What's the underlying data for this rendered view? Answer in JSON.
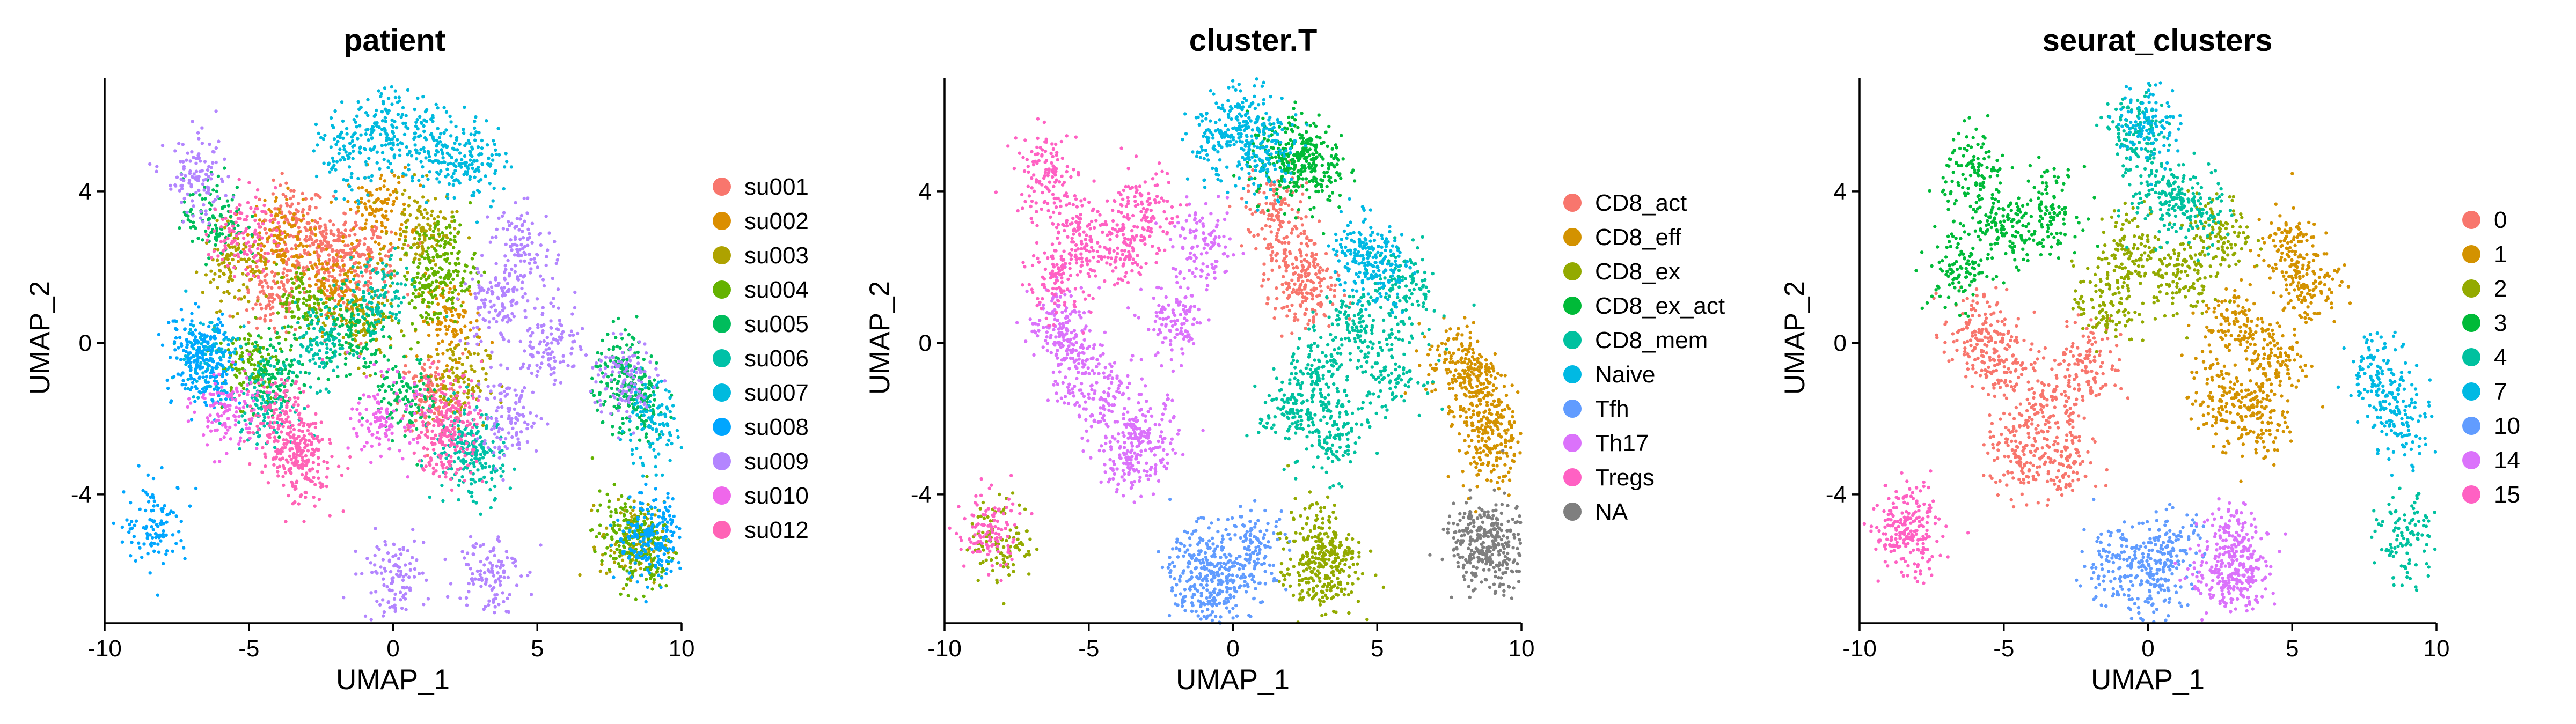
{
  "figure": {
    "panels": [
      {
        "title": "patient",
        "xlabel": "UMAP_1",
        "ylabel": "UMAP_2",
        "legend": [
          {
            "label": "su001",
            "color": "#F8766D"
          },
          {
            "label": "su002",
            "color": "#DB8E00"
          },
          {
            "label": "su003",
            "color": "#AEA200"
          },
          {
            "label": "su004",
            "color": "#64B200"
          },
          {
            "label": "su005",
            "color": "#00BD5C"
          },
          {
            "label": "su006",
            "color": "#00C1A7"
          },
          {
            "label": "su007",
            "color": "#00BADE"
          },
          {
            "label": "su008",
            "color": "#00A6FF"
          },
          {
            "label": "su009",
            "color": "#B385FF"
          },
          {
            "label": "su010",
            "color": "#EF67EB"
          },
          {
            "label": "su012",
            "color": "#FF63B6"
          }
        ]
      },
      {
        "title": "cluster.T",
        "xlabel": "UMAP_1",
        "ylabel": "UMAP_2",
        "legend": [
          {
            "label": "CD8_act",
            "color": "#F8766D"
          },
          {
            "label": "CD8_eff",
            "color": "#D39200"
          },
          {
            "label": "CD8_ex",
            "color": "#93AA00"
          },
          {
            "label": "CD8_ex_act",
            "color": "#00BA38"
          },
          {
            "label": "CD8_mem",
            "color": "#00C19F"
          },
          {
            "label": "Naive",
            "color": "#00B9E3"
          },
          {
            "label": "Tfh",
            "color": "#619CFF"
          },
          {
            "label": "Th17",
            "color": "#DB72FB"
          },
          {
            "label": "Tregs",
            "color": "#FF61C3"
          },
          {
            "label": "NA",
            "color": "#7F7F7F"
          }
        ]
      },
      {
        "title": "seurat_clusters",
        "xlabel": "UMAP_1",
        "ylabel": "UMAP_2",
        "legend": [
          {
            "label": "0",
            "color": "#F8766D"
          },
          {
            "label": "1",
            "color": "#D39200"
          },
          {
            "label": "2",
            "color": "#93AA00"
          },
          {
            "label": "3",
            "color": "#00BA38"
          },
          {
            "label": "4",
            "color": "#00C19F"
          },
          {
            "label": "7",
            "color": "#00B9E3"
          },
          {
            "label": "10",
            "color": "#619CFF"
          },
          {
            "label": "14",
            "color": "#DB72FB"
          },
          {
            "label": "15",
            "color": "#FF61C3"
          }
        ]
      }
    ]
  },
  "chart_data": [
    {
      "type": "scatter",
      "title": "patient",
      "xlabel": "UMAP_1",
      "ylabel": "UMAP_2",
      "xlim": [
        -10,
        10
      ],
      "ylim": [
        -7.4,
        7
      ],
      "xticks": [
        -10,
        -5,
        0,
        5,
        10
      ],
      "yticks": [
        -4,
        0,
        4
      ],
      "xtick_labels": [
        "-10",
        "-5",
        "0",
        "5",
        "10"
      ],
      "ytick_labels": [
        "-4",
        "0",
        "4"
      ],
      "grid": false,
      "legend_position": "right",
      "series": [
        {
          "name": "su001",
          "color": "#F8766D",
          "x": [
            -3.5,
            -2.5,
            -1.8,
            -4.2,
            -0.8,
            1.3
          ],
          "y": [
            3.1,
            2.6,
            1.9,
            1.2,
            2.2,
            -1.4
          ]
        },
        {
          "name": "su002",
          "color": "#DB8E00",
          "x": [
            -4.0,
            -2.2,
            -0.5,
            2.0
          ],
          "y": [
            2.8,
            1.5,
            3.5,
            0.6
          ]
        },
        {
          "name": "su003",
          "color": "#AEA200",
          "x": [
            -5.5,
            -1.0,
            1.0,
            2.2,
            8.3
          ],
          "y": [
            2.0,
            0.5,
            3.0,
            -1.0,
            -5.3
          ]
        },
        {
          "name": "su004",
          "color": "#64B200",
          "x": [
            -5.0,
            -3.0,
            1.2,
            1.8,
            8.0,
            8.6
          ],
          "y": [
            -0.5,
            1.0,
            1.5,
            2.2,
            -5.0,
            -5.5
          ]
        },
        {
          "name": "su005",
          "color": "#00BD5C",
          "x": [
            -6.2,
            -4.0,
            -1.5,
            0.5,
            8.0,
            8.4
          ],
          "y": [
            3.3,
            -0.8,
            0.2,
            -1.5,
            -0.8,
            -1.6
          ]
        },
        {
          "name": "su006",
          "color": "#00C1A7",
          "x": [
            -4.5,
            -2.5,
            -0.5,
            2.5,
            2.8
          ],
          "y": [
            -1.5,
            0.0,
            1.2,
            -2.6,
            -3.2
          ]
        },
        {
          "name": "su007",
          "color": "#00BADE",
          "x": [
            -1.5,
            0.0,
            1.5,
            2.8,
            -6.5,
            8.9
          ],
          "y": [
            5.0,
            5.7,
            5.2,
            4.8,
            -0.3,
            -2.2
          ]
        },
        {
          "name": "su008",
          "color": "#00A6FF",
          "x": [
            -6.8,
            -6.4,
            -8.2,
            9.2,
            8.8
          ],
          "y": [
            -0.2,
            -0.6,
            -4.8,
            -5.3,
            -5.1
          ]
        },
        {
          "name": "su009",
          "color": "#B385FF",
          "x": [
            -6.8,
            3.5,
            4.5,
            5.5,
            4.0,
            0.0,
            3.3,
            8.0
          ],
          "y": [
            4.3,
            1.0,
            2.5,
            0.0,
            -2.0,
            -6.2,
            -6.0,
            -1.0
          ]
        },
        {
          "name": "su010",
          "color": "#EF67EB",
          "x": [
            -0.3,
            -5.8
          ],
          "y": [
            -2.0,
            -1.8
          ]
        },
        {
          "name": "su012",
          "color": "#FF63B6",
          "x": [
            -3.5,
            -3.0,
            -4.0,
            -5.2,
            2.0,
            1.8
          ],
          "y": [
            -2.8,
            -3.2,
            -2.0,
            2.9,
            -1.8,
            -2.7
          ]
        }
      ]
    },
    {
      "type": "scatter",
      "title": "cluster.T",
      "xlabel": "UMAP_1",
      "ylabel": "UMAP_2",
      "xlim": [
        -10,
        10
      ],
      "ylim": [
        -7.4,
        7
      ],
      "xticks": [
        -10,
        -5,
        0,
        5,
        10
      ],
      "yticks": [
        -4,
        0,
        4
      ],
      "xtick_labels": [
        "-10",
        "-5",
        "0",
        "5",
        "10"
      ],
      "ytick_labels": [
        "-4",
        "0",
        "4"
      ],
      "grid": false,
      "legend_position": "right",
      "series": [
        {
          "name": "CD8_act",
          "color": "#F8766D",
          "x": [
            1.5,
            2.2,
            2.5
          ],
          "y": [
            3.5,
            2.0,
            1.2
          ]
        },
        {
          "name": "CD8_eff",
          "color": "#D39200",
          "x": [
            7.8,
            8.5,
            8.8,
            9.0
          ],
          "y": [
            -0.5,
            -1.0,
            -2.0,
            -2.8
          ]
        },
        {
          "name": "CD8_ex",
          "color": "#93AA00",
          "x": [
            3.0,
            3.4,
            2.7,
            -8.0
          ],
          "y": [
            -5.2,
            -5.9,
            -6.2,
            -5.2
          ]
        },
        {
          "name": "CD8_ex_act",
          "color": "#00BA38",
          "x": [
            2.4,
            2.8,
            1.6
          ],
          "y": [
            5.0,
            4.6,
            4.9
          ]
        },
        {
          "name": "CD8_mem",
          "color": "#00C19F",
          "x": [
            3.0,
            4.2,
            5.5,
            3.5,
            6.0,
            2.0
          ],
          "y": [
            -1.0,
            0.5,
            -0.8,
            -2.5,
            1.5,
            -1.8
          ]
        },
        {
          "name": "Naive",
          "color": "#00B9E3",
          "x": [
            -0.5,
            0.5,
            1.2,
            4.5,
            5.0
          ],
          "y": [
            5.3,
            5.8,
            5.0,
            2.5,
            2.0
          ]
        },
        {
          "name": "Tfh",
          "color": "#619CFF",
          "x": [
            -1.5,
            -0.2,
            0.8,
            -0.8
          ],
          "y": [
            -5.8,
            -6.2,
            -5.4,
            -6.6
          ]
        },
        {
          "name": "Th17",
          "color": "#DB72FB",
          "x": [
            -6.0,
            -4.5,
            -3.0,
            -2.0,
            -5.5,
            -3.5,
            -1.0
          ],
          "y": [
            0.5,
            -1.5,
            -2.5,
            0.5,
            -0.5,
            -3.0,
            2.5
          ]
        },
        {
          "name": "Tregs",
          "color": "#FF61C3",
          "x": [
            -6.5,
            -5.5,
            -4.0,
            -3.0,
            -6.0,
            -8.5
          ],
          "y": [
            4.5,
            3.0,
            2.5,
            3.5,
            1.8,
            -5.0
          ]
        },
        {
          "name": "NA",
          "color": "#7F7F7F",
          "x": [
            8.3,
            8.8,
            9.2
          ],
          "y": [
            -5.2,
            -5.5,
            -5.3
          ]
        }
      ]
    },
    {
      "type": "scatter",
      "title": "seurat_clusters",
      "xlabel": "UMAP_1",
      "ylabel": "UMAP_2",
      "xlim": [
        -10,
        10
      ],
      "ylim": [
        -7.4,
        7
      ],
      "xticks": [
        -10,
        -5,
        0,
        5,
        10
      ],
      "yticks": [
        -4,
        0,
        4
      ],
      "xtick_labels": [
        "-10",
        "-5",
        "0",
        "5",
        "10"
      ],
      "ytick_labels": [
        "-4",
        "0",
        "4"
      ],
      "grid": false,
      "legend_position": "right",
      "series": [
        {
          "name": "0",
          "color": "#F8766D",
          "x": [
            -5.0,
            -3.5,
            -2.0,
            -4.5,
            -3.0,
            -6.0
          ],
          "y": [
            -0.5,
            -1.5,
            -0.5,
            -3.0,
            -3.2,
            0.3
          ]
        },
        {
          "name": "1",
          "color": "#D39200",
          "x": [
            3.0,
            4.5,
            5.5,
            3.8,
            2.5,
            4.8
          ],
          "y": [
            0.5,
            -0.5,
            1.5,
            -2.0,
            -1.5,
            2.5
          ]
        },
        {
          "name": "2",
          "color": "#93AA00",
          "x": [
            -1.5,
            -0.5,
            1.0,
            2.5
          ],
          "y": [
            1.0,
            2.5,
            1.8,
            2.8
          ]
        },
        {
          "name": "3",
          "color": "#00BA38",
          "x": [
            -6.0,
            -5.0,
            -3.5,
            -6.5
          ],
          "y": [
            4.5,
            3.0,
            3.5,
            2.0
          ]
        },
        {
          "name": "4",
          "color": "#00C19F",
          "x": [
            -0.5,
            0.5,
            1.5,
            9.0
          ],
          "y": [
            5.5,
            4.0,
            3.5,
            -5.2
          ]
        },
        {
          "name": "7",
          "color": "#00B9E3",
          "x": [
            8.0,
            8.8,
            0.0
          ],
          "y": [
            -0.8,
            -2.0,
            5.8
          ]
        },
        {
          "name": "10",
          "color": "#619CFF",
          "x": [
            -1.2,
            0.0,
            0.8
          ],
          "y": [
            -5.8,
            -6.3,
            -5.5
          ]
        },
        {
          "name": "14",
          "color": "#DB72FB",
          "x": [
            3.0,
            3.4,
            2.6
          ],
          "y": [
            -5.2,
            -6.0,
            -6.3
          ]
        },
        {
          "name": "15",
          "color": "#FF61C3",
          "x": [
            -8.5,
            -8.2
          ],
          "y": [
            -4.8,
            -5.2
          ]
        }
      ]
    }
  ]
}
